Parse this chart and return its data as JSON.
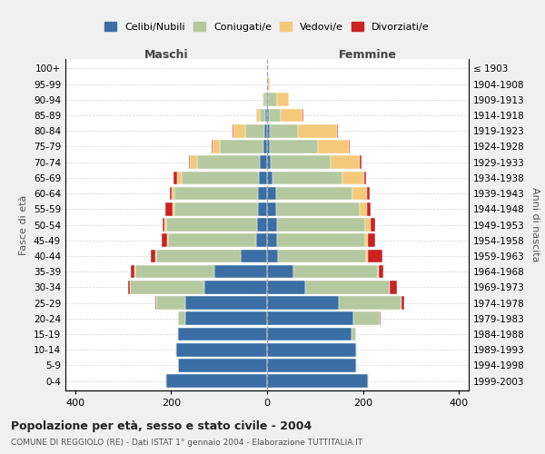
{
  "age_groups": [
    "0-4",
    "5-9",
    "10-14",
    "15-19",
    "20-24",
    "25-29",
    "30-34",
    "35-39",
    "40-44",
    "45-49",
    "50-54",
    "55-59",
    "60-64",
    "65-69",
    "70-74",
    "75-79",
    "80-84",
    "85-89",
    "90-94",
    "95-99",
    "100+"
  ],
  "birth_years": [
    "1999-2003",
    "1994-1998",
    "1989-1993",
    "1984-1988",
    "1979-1983",
    "1974-1978",
    "1969-1973",
    "1964-1968",
    "1959-1963",
    "1954-1958",
    "1949-1953",
    "1944-1948",
    "1939-1943",
    "1934-1938",
    "1929-1933",
    "1924-1928",
    "1919-1923",
    "1914-1918",
    "1909-1913",
    "1904-1908",
    "≤ 1903"
  ],
  "colors": {
    "celibi": "#3a6ea5",
    "coniugati": "#b5c9a0",
    "vedovi": "#f5c97a",
    "divorziati": "#cc2222"
  },
  "males": {
    "celibi": [
      210,
      185,
      190,
      185,
      170,
      170,
      130,
      110,
      55,
      22,
      20,
      18,
      18,
      17,
      15,
      8,
      5,
      3,
      2,
      0,
      0
    ],
    "coniugati": [
      1,
      1,
      2,
      3,
      15,
      60,
      155,
      165,
      175,
      185,
      190,
      175,
      175,
      160,
      130,
      90,
      40,
      12,
      5,
      0,
      0
    ],
    "vedovi": [
      0,
      0,
      0,
      0,
      0,
      1,
      1,
      1,
      2,
      2,
      3,
      3,
      5,
      10,
      15,
      15,
      25,
      8,
      3,
      0,
      0
    ],
    "divorziati": [
      0,
      0,
      0,
      0,
      1,
      2,
      3,
      8,
      10,
      10,
      5,
      15,
      5,
      8,
      3,
      2,
      2,
      0,
      0,
      0,
      0
    ]
  },
  "females": {
    "nubili": [
      210,
      185,
      185,
      175,
      180,
      150,
      80,
      55,
      22,
      20,
      20,
      18,
      18,
      12,
      8,
      5,
      5,
      3,
      2,
      0,
      0
    ],
    "coniugati": [
      1,
      2,
      3,
      10,
      55,
      130,
      175,
      175,
      185,
      185,
      185,
      175,
      160,
      145,
      125,
      100,
      60,
      25,
      18,
      2,
      0
    ],
    "vedovi": [
      0,
      0,
      0,
      0,
      0,
      0,
      1,
      2,
      3,
      5,
      10,
      15,
      30,
      45,
      60,
      65,
      80,
      45,
      25,
      3,
      0
    ],
    "divorziati": [
      0,
      0,
      0,
      0,
      2,
      5,
      15,
      10,
      30,
      15,
      10,
      8,
      5,
      5,
      3,
      3,
      2,
      2,
      0,
      0,
      0
    ]
  },
  "xlim": [
    -420,
    420
  ],
  "xticks": [
    -400,
    -200,
    0,
    200,
    400
  ],
  "xticklabels": [
    "400",
    "200",
    "0",
    "200",
    "400"
  ],
  "title": "Popolazione per età, sesso e stato civile - 2004",
  "subtitle": "COMUNE DI REGGIOLO (RE) - Dati ISTAT 1° gennaio 2004 - Elaborazione TUTTITALIA.IT",
  "ylabel_left": "Fasce di età",
  "ylabel_right": "Anni di nascita",
  "maschi_label": "Maschi",
  "femmine_label": "Femmine",
  "background_color": "#f0f0f0",
  "plot_background": "#ffffff",
  "bar_height": 0.85
}
